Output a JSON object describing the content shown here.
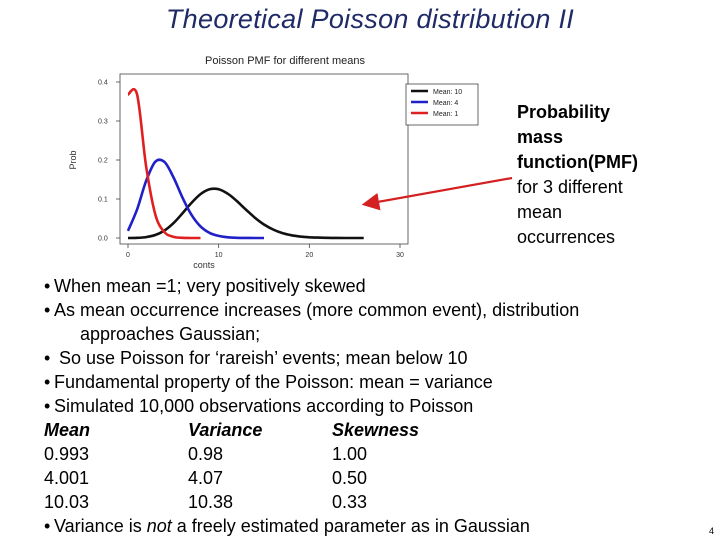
{
  "slide": {
    "title": "Theoretical Poisson distribution II",
    "page_number": "4"
  },
  "annotation": {
    "lines": [
      "Probability",
      "mass",
      "function(PMF)",
      "for 3 different",
      "mean",
      "occurrences"
    ],
    "arrow_color": "#d42020"
  },
  "body": {
    "bullets": [
      {
        "text": "When mean =1; very positively skewed"
      },
      {
        "text": "As mean occurrence increases (more common event), distribution"
      },
      {
        "text": "approaches  Gaussian;"
      },
      {
        "text": " So use Poisson for ‘rareish’ events; mean below 10"
      },
      {
        "text": "Fundamental property of the Poisson: mean = variance"
      },
      {
        "text": "Simulated  10,000 observations according to Poisson"
      }
    ],
    "stats_header": [
      "Mean",
      "Variance",
      "Skewness"
    ],
    "stats_rows": [
      [
        "0.993",
        "0.98",
        "1.00"
      ],
      [
        "4.001",
        "4.07",
        "0.50"
      ],
      [
        "10.03",
        "10.38",
        "0.33"
      ]
    ],
    "last_bullet": {
      "before": "Variance is ",
      "emph": "not",
      "after": " a freely estimated parameter as in Gaussian"
    },
    "bullet_symbol": "•"
  },
  "chart_data": {
    "type": "line",
    "title": "Poisson PMF for different means",
    "xlabel": "conts",
    "ylabel": "Prob",
    "xlim": [
      0,
      30
    ],
    "ylim": [
      0,
      0.4
    ],
    "x_ticks": [
      "0",
      "10",
      "20",
      "30"
    ],
    "y_ticks": [
      "0.0",
      "0.1",
      "0.2",
      "0.3",
      "0.4"
    ],
    "legend_position": "top-right",
    "series": [
      {
        "name": "Mean: 10",
        "color": "#111111",
        "x": [
          0,
          1,
          2,
          3,
          4,
          5,
          6,
          7,
          8,
          9,
          10,
          11,
          12,
          13,
          14,
          15,
          16,
          17,
          18,
          19,
          20,
          21,
          22,
          23,
          24,
          25,
          26
        ],
        "values": [
          0.0,
          0.0005,
          0.0023,
          0.0076,
          0.0189,
          0.0378,
          0.0631,
          0.0901,
          0.1126,
          0.1251,
          0.1251,
          0.1137,
          0.0948,
          0.0729,
          0.0521,
          0.0347,
          0.0217,
          0.0128,
          0.0071,
          0.0037,
          0.0019,
          0.0009,
          0.0004,
          0.0002,
          0.0001,
          0.0,
          0.0
        ]
      },
      {
        "name": "Mean: 4",
        "color": "#2020c8",
        "x": [
          0,
          1,
          2,
          3,
          4,
          5,
          6,
          7,
          8,
          9,
          10,
          11,
          12,
          13,
          14,
          15
        ],
        "values": [
          0.0183,
          0.0733,
          0.1465,
          0.1954,
          0.1954,
          0.1563,
          0.1042,
          0.0595,
          0.0298,
          0.0132,
          0.0053,
          0.0019,
          0.0006,
          0.0002,
          0.0001,
          0.0
        ]
      },
      {
        "name": "Mean: 1",
        "color": "#e02020",
        "x": [
          0,
          1,
          2,
          3,
          4,
          5,
          6,
          7,
          8
        ],
        "values": [
          0.3679,
          0.3679,
          0.1839,
          0.0613,
          0.0153,
          0.0031,
          0.0005,
          0.0001,
          0.0
        ]
      }
    ]
  }
}
